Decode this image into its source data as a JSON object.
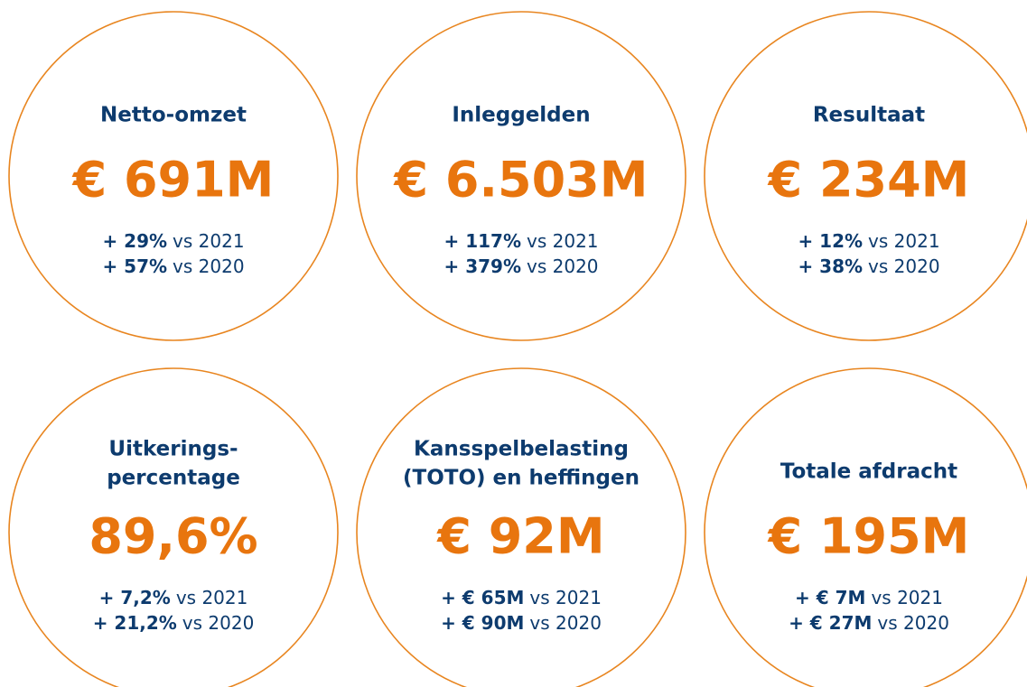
{
  "cards": [
    {
      "title": [
        "Netto-omzet"
      ],
      "value": "€ 691M",
      "changes": [
        {
          "change": "+ 29%",
          "label": "vs 2021"
        },
        {
          "change": "+ 57%",
          "label": "vs 2020"
        }
      ]
    },
    {
      "title": [
        "Inleggelden"
      ],
      "value": "€ 6.503M",
      "changes": [
        {
          "change": "+ 117%",
          "label": "vs 2021"
        },
        {
          "change": "+ 379%",
          "label": "vs 2020"
        }
      ]
    },
    {
      "title": [
        "Resultaat"
      ],
      "value": "€ 234M",
      "changes": [
        {
          "change": "+ 12%",
          "label": "vs 2021"
        },
        {
          "change": "+ 38%",
          "label": "vs 2020"
        }
      ]
    },
    {
      "title": [
        "Uitkerings-",
        "percentage"
      ],
      "value": "89,6%",
      "changes": [
        {
          "change": "+ 7,2%",
          "label": "vs 2021"
        },
        {
          "change": "+ 21,2%",
          "label": "vs 2020"
        }
      ]
    },
    {
      "title": [
        "Kansspelbelasting",
        "(TOTO) en heffingen"
      ],
      "value": "€ 92M",
      "changes": [
        {
          "change": "+ € 65M",
          "label": "vs 2021"
        },
        {
          "change": "+ € 90M",
          "label": "vs 2020"
        }
      ]
    },
    {
      "title": [
        "Totale afdracht"
      ],
      "value": "€ 195M",
      "changes": [
        {
          "change": "+ € 7M",
          "label": "vs 2021"
        },
        {
          "change": "+ € 27M",
          "label": "vs 2020"
        }
      ]
    }
  ]
}
